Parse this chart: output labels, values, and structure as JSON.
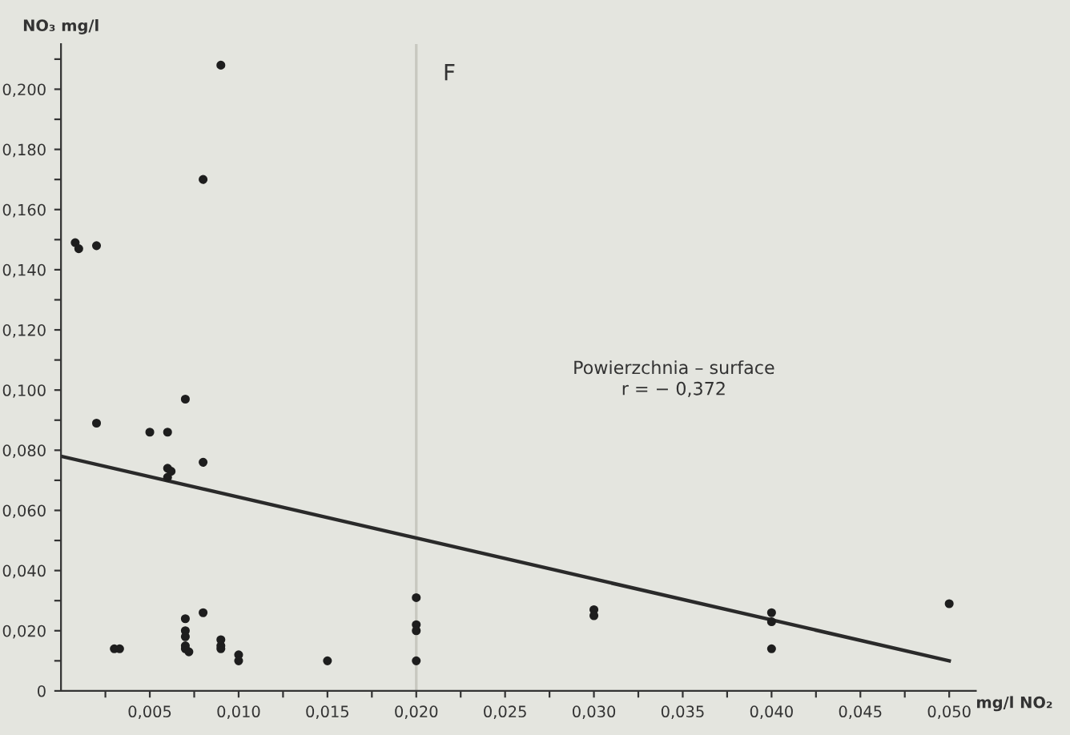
{
  "chart_data": {
    "type": "scatter",
    "ylabel": "NO₃ mg/l",
    "xlabel": "mg/l NO₂",
    "annotations": [
      "F",
      "Powierzchnia – surface",
      "r = − 0,372"
    ],
    "xlim": [
      0,
      0.0515
    ],
    "ylim": [
      0,
      0.215
    ],
    "xticks": [
      {
        "value": 0.0025,
        "label": null
      },
      {
        "value": 0.005,
        "label": "0,005"
      },
      {
        "value": 0.0075,
        "label": null
      },
      {
        "value": 0.01,
        "label": "0,010"
      },
      {
        "value": 0.0125,
        "label": null
      },
      {
        "value": 0.015,
        "label": "0,015"
      },
      {
        "value": 0.0175,
        "label": null
      },
      {
        "value": 0.02,
        "label": "0,020"
      },
      {
        "value": 0.0225,
        "label": null
      },
      {
        "value": 0.025,
        "label": "0,025"
      },
      {
        "value": 0.0275,
        "label": null
      },
      {
        "value": 0.03,
        "label": "0,030"
      },
      {
        "value": 0.0325,
        "label": null
      },
      {
        "value": 0.035,
        "label": "0,035"
      },
      {
        "value": 0.0375,
        "label": null
      },
      {
        "value": 0.04,
        "label": "0,040"
      },
      {
        "value": 0.0425,
        "label": null
      },
      {
        "value": 0.045,
        "label": "0,045"
      },
      {
        "value": 0.0475,
        "label": null
      },
      {
        "value": 0.05,
        "label": "0,050"
      }
    ],
    "yticks": [
      0,
      {
        "value": 0.01,
        "label": null
      },
      {
        "value": 0.02,
        "label": "0,020"
      },
      {
        "value": 0.03,
        "label": null
      },
      {
        "value": 0.04,
        "label": "0,040"
      },
      {
        "value": 0.05,
        "label": null
      },
      {
        "value": 0.06,
        "label": "0,060"
      },
      {
        "value": 0.07,
        "label": null
      },
      {
        "value": 0.08,
        "label": "0,080"
      },
      {
        "value": 0.09,
        "label": null
      },
      {
        "value": 0.1,
        "label": "0,100"
      },
      {
        "value": 0.11,
        "label": null
      },
      {
        "value": 0.12,
        "label": "0,120"
      },
      {
        "value": 0.13,
        "label": null
      },
      {
        "value": 0.14,
        "label": "0,140"
      },
      {
        "value": 0.15,
        "label": null
      },
      {
        "value": 0.16,
        "label": "0,160"
      },
      {
        "value": 0.17,
        "label": null
      },
      {
        "value": 0.18,
        "label": "0,180"
      },
      {
        "value": 0.19,
        "label": null
      },
      {
        "value": 0.2,
        "label": "0,200"
      },
      {
        "value": 0.21,
        "label": null
      }
    ],
    "grid": false,
    "legend": false,
    "marker": "circle",
    "ref_lines": [
      {
        "axis": "x",
        "value": 0.02,
        "label": null,
        "color": "#c8c8c0"
      }
    ],
    "series": [
      {
        "color": "#1e1e1e",
        "x": [
          0.0008,
          0.001,
          0.002,
          0.009,
          0.008,
          0.002,
          0.005,
          0.006,
          0.007,
          0.006,
          0.0062,
          0.006,
          0.008,
          0.003,
          0.0033,
          0.007,
          0.007,
          0.007,
          0.007,
          0.007,
          0.0072,
          0.008,
          0.009,
          0.009,
          0.009,
          0.01,
          0.01,
          0.015,
          0.02,
          0.02,
          0.02,
          0.02,
          0.03,
          0.03,
          0.04,
          0.04,
          0.04,
          0.05
        ],
        "values": [
          0.149,
          0.147,
          0.148,
          0.208,
          0.17,
          0.089,
          0.086,
          0.086,
          0.097,
          0.074,
          0.073,
          0.071,
          0.076,
          0.014,
          0.014,
          0.024,
          0.02,
          0.018,
          0.015,
          0.014,
          0.013,
          0.026,
          0.017,
          0.015,
          0.014,
          0.012,
          0.01,
          0.01,
          0.031,
          0.022,
          0.02,
          0.01,
          0.027,
          0.025,
          0.026,
          0.023,
          0.014,
          0.029
        ]
      },
      {
        "type": "line",
        "color": "#2a2a2a",
        "x": [
          0,
          0.05
        ],
        "values": [
          0.078,
          0.01
        ],
        "marker": "none"
      }
    ]
  }
}
